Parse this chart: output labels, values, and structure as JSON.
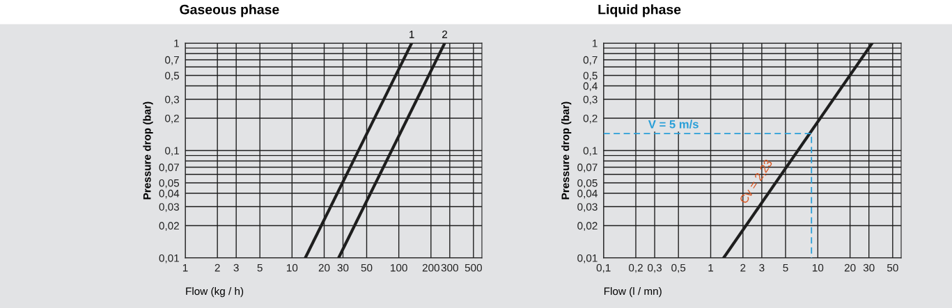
{
  "chart_data": [
    {
      "type": "line",
      "title": "Gaseous phase",
      "xlabel": "Flow (kg / h)",
      "ylabel": "Pressure drop (bar)",
      "log": "xy",
      "grid": true,
      "legend": false,
      "xlim": [
        1,
        600
      ],
      "ylim": [
        0.01,
        1
      ],
      "xticks": [
        1,
        2,
        3,
        5,
        10,
        20,
        30,
        50,
        100,
        200,
        300,
        500
      ],
      "yticks": [
        {
          "value": 0.01,
          "label": "0,01"
        },
        {
          "value": 0.02,
          "label": "0,02"
        },
        {
          "value": 0.03,
          "label": "0,03"
        },
        {
          "value": 0.04,
          "label": "0,04"
        },
        {
          "value": 0.05,
          "label": "0,05"
        },
        {
          "value": 0.06,
          "label": null
        },
        {
          "value": 0.07,
          "label": "0,07"
        },
        {
          "value": 0.08,
          "label": null
        },
        {
          "value": 0.09,
          "label": null
        },
        {
          "value": 0.1,
          "label": "0,1"
        },
        {
          "value": 0.2,
          "label": "0,2"
        },
        {
          "value": 0.3,
          "label": "0,3"
        },
        {
          "value": 0.4,
          "label": null
        },
        {
          "value": 0.5,
          "label": "0,5"
        },
        {
          "value": 0.6,
          "label": null
        },
        {
          "value": 0.7,
          "label": "0,7"
        },
        {
          "value": 0.8,
          "label": null
        },
        {
          "value": 0.9,
          "label": null
        },
        1
      ],
      "series": [
        {
          "color": "#1e1e1e",
          "x": [
            13.3,
            132
          ],
          "values": [
            0.01,
            1
          ]
        },
        {
          "color": "#1e1e1e",
          "x": [
            27.3,
            269
          ],
          "values": [
            0.01,
            1
          ]
        }
      ],
      "annotations": [
        {
          "text": "1",
          "x": 132,
          "y": 1
        },
        {
          "text": "2",
          "x": 269,
          "y": 1
        }
      ]
    },
    {
      "type": "line",
      "title": "Liquid phase",
      "xlabel": "Flow (l / mn)",
      "ylabel": "Pressure drop (bar)",
      "log": "xy",
      "grid": true,
      "legend": false,
      "xlim": [
        0.1,
        60
      ],
      "ylim": [
        0.01,
        1
      ],
      "xticks": [
        {
          "value": 0.1,
          "label": "0,1"
        },
        {
          "value": 0.2,
          "label": "0,2"
        },
        {
          "value": 0.3,
          "label": "0,3"
        },
        {
          "value": 0.5,
          "label": "0,5"
        },
        1,
        2,
        3,
        5,
        10,
        20,
        30,
        50
      ],
      "yticks": [
        {
          "value": 0.01,
          "label": "0,01"
        },
        {
          "value": 0.02,
          "label": "0,02"
        },
        {
          "value": 0.03,
          "label": "0,03"
        },
        {
          "value": 0.04,
          "label": "0,04"
        },
        {
          "value": 0.05,
          "label": "0,05"
        },
        {
          "value": 0.06,
          "label": null
        },
        {
          "value": 0.07,
          "label": "0,07"
        },
        {
          "value": 0.08,
          "label": null
        },
        {
          "value": 0.09,
          "label": null
        },
        {
          "value": 0.1,
          "label": "0,1"
        },
        {
          "value": 0.2,
          "label": "0,2"
        },
        {
          "value": 0.3,
          "label": "0,3"
        },
        {
          "value": 0.4,
          "label": "0,4"
        },
        {
          "value": 0.5,
          "label": "0,5"
        },
        {
          "value": 0.6,
          "label": null
        },
        {
          "value": 0.7,
          "label": "0,7"
        },
        {
          "value": 0.8,
          "label": null
        },
        {
          "value": 0.9,
          "label": null
        },
        1
      ],
      "series": [
        {
          "color": "#1e1e1e",
          "x": [
            1.32,
            32.2
          ],
          "values": [
            0.01,
            1
          ]
        },
        {
          "color": "#2a9fd8",
          "line_style": "dashed",
          "x": [
            0.1,
            8.73,
            8.73
          ],
          "values": [
            0.144,
            0.144,
            0.01
          ]
        }
      ],
      "annotations": [
        {
          "text": "V = 5 m/s",
          "x": 0.45,
          "y": 0.144
        },
        {
          "text": "Cv = 2,23",
          "x": 3.75,
          "y": 0.045
        }
      ]
    }
  ]
}
